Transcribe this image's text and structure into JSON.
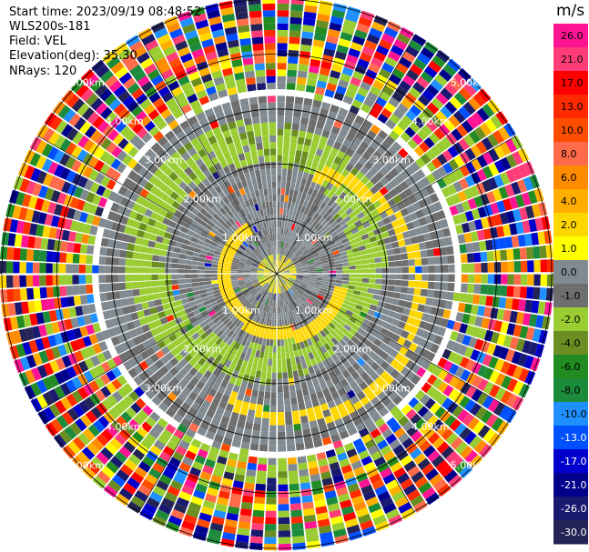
{
  "header": {
    "start_time": "Start time: 2023/09/19 08:48:52",
    "instrument": "WLS200s-181",
    "field": "Field: VEL",
    "elevation": "Elevation(deg): 35.30",
    "nrays": "NRays: 120"
  },
  "chart_data": {
    "type": "heatmap",
    "projection": "polar PPI",
    "n_rays": 120,
    "range_rings": [
      "1.00km",
      "2.00km",
      "3.00km",
      "4.00km",
      "5.00km"
    ],
    "range_rings_km": [
      1,
      2,
      3,
      4,
      5
    ],
    "max_range_km": 5.0,
    "colorbar": {
      "unit": "m/s",
      "ticks": [
        "26.0",
        "21.0",
        "17.0",
        "13.0",
        "10.0",
        "8.0",
        "6.0",
        "4.0",
        "2.0",
        "1.0",
        "0.0",
        "-1.0",
        "-2.0",
        "-4.0",
        "-6.0",
        "-8.0",
        "-10.0",
        "-13.0",
        "-17.0",
        "-21.0",
        "-26.0",
        "-30.0"
      ],
      "colors": [
        "#ff1493",
        "#ff3c78",
        "#ff0000",
        "#ff2a00",
        "#ff4d00",
        "#ff6b4a",
        "#ff8c00",
        "#ffae00",
        "#ffd700",
        "#ffff00",
        "#808a90",
        "#6e6e6e",
        "#9acd32",
        "#6b8e23",
        "#228b22",
        "#1c8c3c",
        "#1e90ff",
        "#0050ff",
        "#0000cd",
        "#00008b",
        "#191970",
        "#232355"
      ]
    },
    "grid": true
  }
}
